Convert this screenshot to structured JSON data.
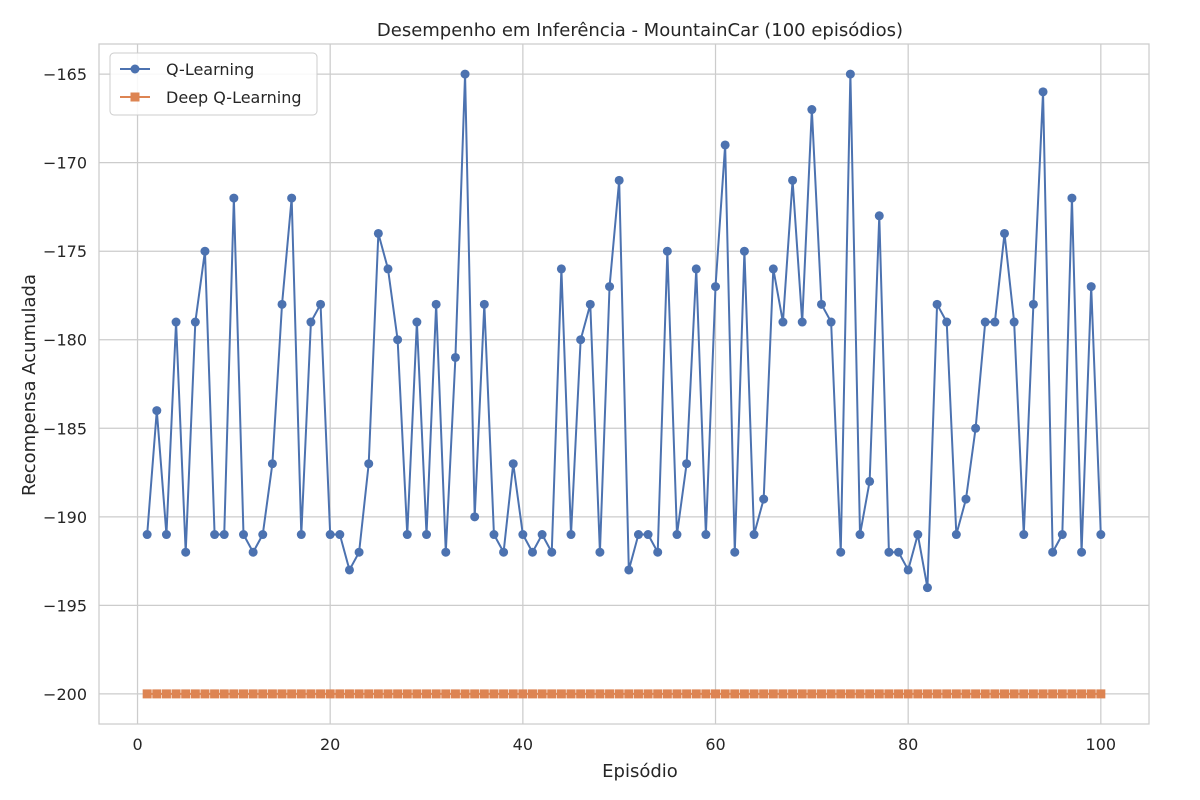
{
  "chart_data": {
    "type": "line",
    "title": "Desempenho em Inferência - MountainCar (100 episódios)",
    "xlabel": "Episódio",
    "ylabel": "Recompensa Acumulada",
    "xlim": [
      -4,
      105
    ],
    "ylim": [
      -201.7,
      -163.3
    ],
    "xticks": [
      0,
      20,
      40,
      60,
      80,
      100
    ],
    "yticks": [
      -165,
      -170,
      -175,
      -180,
      -185,
      -190,
      -195,
      -200
    ],
    "grid": true,
    "legend_position": "top-left",
    "series": [
      {
        "name": "Q-Learning",
        "color": "#4c72b0",
        "marker": "circle",
        "values": [
          -191,
          -184,
          -191,
          -179,
          -192,
          -179,
          -175,
          -191,
          -191,
          -172,
          -191,
          -192,
          -191,
          -187,
          -178,
          -172,
          -191,
          -179,
          -178,
          -191,
          -191,
          -193,
          -192,
          -187,
          -174,
          -176,
          -180,
          -191,
          -179,
          -191,
          -178,
          -192,
          -181,
          -165,
          -190,
          -178,
          -191,
          -192,
          -187,
          -191,
          -192,
          -191,
          -192,
          -176,
          -191,
          -180,
          -178,
          -192,
          -177,
          -171,
          -193,
          -191,
          -191,
          -192,
          -175,
          -191,
          -187,
          -176,
          -191,
          -177,
          -169,
          -192,
          -175,
          -191,
          -189,
          -176,
          -179,
          -171,
          -179,
          -167,
          -178,
          -179,
          -192,
          -165,
          -191,
          -188,
          -173,
          -192,
          -192,
          -193,
          -191,
          -194,
          -178,
          -179,
          -191,
          -189,
          -185,
          -179,
          -179,
          -174,
          -179,
          -191,
          -178,
          -166,
          -192,
          -191,
          -172,
          -192,
          -177,
          -191
        ]
      },
      {
        "name": "Deep Q-Learning",
        "color": "#dd8452",
        "marker": "square",
        "values": [
          -200,
          -200,
          -200,
          -200,
          -200,
          -200,
          -200,
          -200,
          -200,
          -200,
          -200,
          -200,
          -200,
          -200,
          -200,
          -200,
          -200,
          -200,
          -200,
          -200,
          -200,
          -200,
          -200,
          -200,
          -200,
          -200,
          -200,
          -200,
          -200,
          -200,
          -200,
          -200,
          -200,
          -200,
          -200,
          -200,
          -200,
          -200,
          -200,
          -200,
          -200,
          -200,
          -200,
          -200,
          -200,
          -200,
          -200,
          -200,
          -200,
          -200,
          -200,
          -200,
          -200,
          -200,
          -200,
          -200,
          -200,
          -200,
          -200,
          -200,
          -200,
          -200,
          -200,
          -200,
          -200,
          -200,
          -200,
          -200,
          -200,
          -200,
          -200,
          -200,
          -200,
          -200,
          -200,
          -200,
          -200,
          -200,
          -200,
          -200,
          -200,
          -200,
          -200,
          -200,
          -200,
          -200,
          -200,
          -200,
          -200,
          -200,
          -200,
          -200,
          -200,
          -200,
          -200,
          -200,
          -200,
          -200,
          -200,
          -200
        ]
      }
    ]
  }
}
